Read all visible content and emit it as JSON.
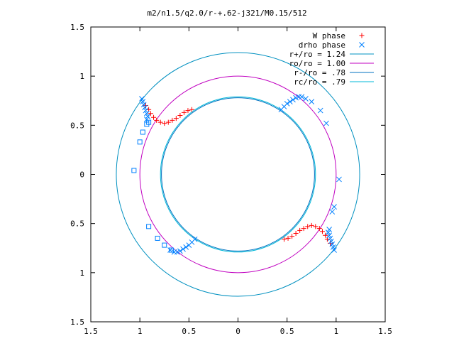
{
  "chart_data": {
    "type": "scatter",
    "title": "m2/n1.5/q2.0/r-+.62-j321/M0.15/512",
    "xlim": [
      -1.5,
      1.5
    ],
    "ylim": [
      -1.5,
      1.5
    ],
    "x_ticks": [
      -1.5,
      -1,
      -0.5,
      0,
      0.5,
      1,
      1.5
    ],
    "x_tick_labels": [
      "1.5",
      "1",
      "0.5",
      "0",
      "0.5",
      "1",
      "1.5"
    ],
    "y_ticks": [
      1.5,
      1,
      0.5,
      0,
      -0.5,
      -1,
      -1.5
    ],
    "y_tick_labels": [
      "1.5",
      "1",
      "0.5",
      "0",
      "0.5",
      "1",
      "1.5"
    ],
    "grid": false,
    "legend_position": "top-right",
    "legend": [
      {
        "label": "W phase",
        "marker": "plus",
        "color": "#ff0000"
      },
      {
        "label": "drho phase",
        "marker": "cross",
        "color": "#0080ff"
      },
      {
        "label": "r+/ro = 1.24",
        "marker": "line",
        "color": "#0090c0"
      },
      {
        "label": "ro/ro = 1.00",
        "marker": "line",
        "color": "#c000c0"
      },
      {
        "label": "r-/ro = .78",
        "marker": "line",
        "color": "#0070c0"
      },
      {
        "label": "rc/ro = .79",
        "marker": "line",
        "color": "#00b8d8"
      }
    ],
    "circles": [
      {
        "r": 1.24,
        "color": "#0090c0"
      },
      {
        "r": 1.0,
        "color": "#c000c0"
      },
      {
        "r": 0.78,
        "color": "#0070c0"
      },
      {
        "r": 0.79,
        "color": "#00b8d8"
      }
    ],
    "series": [
      {
        "marker": "plus",
        "color": "#ff0000",
        "points": [
          [
            -0.94,
            0.7
          ],
          [
            -0.91,
            0.66
          ],
          [
            -0.89,
            0.62
          ],
          [
            -0.86,
            0.58
          ],
          [
            -0.83,
            0.55
          ],
          [
            -0.79,
            0.53
          ],
          [
            -0.75,
            0.52
          ],
          [
            -0.71,
            0.53
          ],
          [
            -0.67,
            0.55
          ],
          [
            -0.63,
            0.57
          ],
          [
            -0.59,
            0.6
          ],
          [
            -0.55,
            0.63
          ],
          [
            -0.51,
            0.65
          ],
          [
            -0.47,
            0.66
          ],
          [
            0.94,
            -0.7
          ],
          [
            0.91,
            -0.66
          ],
          [
            0.89,
            -0.62
          ],
          [
            0.86,
            -0.58
          ],
          [
            0.83,
            -0.55
          ],
          [
            0.79,
            -0.53
          ],
          [
            0.75,
            -0.52
          ],
          [
            0.71,
            -0.53
          ],
          [
            0.67,
            -0.55
          ],
          [
            0.63,
            -0.57
          ],
          [
            0.59,
            -0.6
          ],
          [
            0.55,
            -0.63
          ],
          [
            0.51,
            -0.65
          ],
          [
            0.47,
            -0.66
          ]
        ]
      },
      {
        "marker": "cross",
        "color": "#0080ff",
        "points": [
          [
            -0.98,
            0.77
          ],
          [
            -0.97,
            0.74
          ],
          [
            -0.96,
            0.71
          ],
          [
            -0.95,
            0.68
          ],
          [
            -0.94,
            0.65
          ],
          [
            -0.93,
            0.62
          ],
          [
            -0.92,
            0.59
          ],
          [
            -0.93,
            0.56
          ],
          [
            0.44,
            0.66
          ],
          [
            0.47,
            0.69
          ],
          [
            0.5,
            0.72
          ],
          [
            0.53,
            0.74
          ],
          [
            0.56,
            0.76
          ],
          [
            0.59,
            0.78
          ],
          [
            0.62,
            0.79
          ],
          [
            0.65,
            0.79
          ],
          [
            0.69,
            0.77
          ],
          [
            0.75,
            0.74
          ],
          [
            0.84,
            0.65
          ],
          [
            0.9,
            0.52
          ],
          [
            1.03,
            -0.05
          ],
          [
            0.98,
            -0.33
          ],
          [
            0.96,
            -0.38
          ],
          [
            0.98,
            -0.77
          ],
          [
            0.97,
            -0.74
          ],
          [
            0.96,
            -0.71
          ],
          [
            0.95,
            -0.68
          ],
          [
            0.94,
            -0.65
          ],
          [
            0.93,
            -0.62
          ],
          [
            0.92,
            -0.59
          ],
          [
            0.93,
            -0.56
          ],
          [
            -0.44,
            -0.66
          ],
          [
            -0.47,
            -0.69
          ],
          [
            -0.5,
            -0.72
          ],
          [
            -0.53,
            -0.74
          ],
          [
            -0.56,
            -0.76
          ],
          [
            -0.59,
            -0.78
          ],
          [
            -0.62,
            -0.79
          ],
          [
            -0.65,
            -0.79
          ],
          [
            -0.69,
            -0.77
          ]
        ]
      },
      {
        "marker": "square",
        "color": "#0080ff",
        "points": [
          [
            -1.06,
            0.04
          ],
          [
            -1.0,
            0.33
          ],
          [
            -0.97,
            0.43
          ],
          [
            -0.93,
            0.51
          ],
          [
            -0.91,
            0.53
          ],
          [
            -0.91,
            -0.53
          ],
          [
            -0.82,
            -0.65
          ],
          [
            -0.75,
            -0.72
          ],
          [
            -0.68,
            -0.77
          ]
        ]
      }
    ]
  }
}
